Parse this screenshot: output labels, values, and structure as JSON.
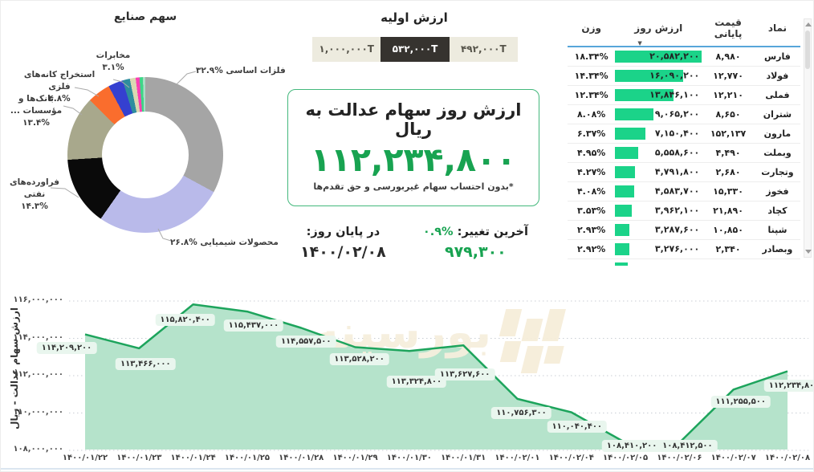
{
  "colors": {
    "accent_green": "#18a351",
    "bar_green": "#1bd389",
    "line_green": "#1da45c",
    "area_fill": "#b5e3cb",
    "chip_bg": "#e9f6ee",
    "tab_bg": "#edebdf",
    "tab_selected_bg": "#36332f",
    "header_underline_blue": "#57a6da"
  },
  "initial_value": {
    "title": "ارزش اولیه",
    "options": [
      "۱,۰۰۰,۰۰۰T",
      "۵۳۲,۰۰۰T",
      "۴۹۲,۰۰۰T"
    ],
    "selected_index": 1
  },
  "day_value": {
    "title": "ارزش روز سهام عدالت به ریال",
    "amount": "۱۱۲,۲۳۴,۸۰۰",
    "note": "*بدون احتساب سهام غیربورسی و حق تقدم‌ها"
  },
  "stats": {
    "last_change_label": "آخرین تغییر:",
    "last_change_percent": "۰.۹%",
    "last_change_value": "۹۷۹,۳۰۰",
    "end_of_day_label": "در پایان روز:",
    "end_of_day_date": "۱۴۰۰/۰۲/۰۸"
  },
  "table": {
    "columns": [
      "نماد",
      "قیمت پایانی",
      "ارزش روز",
      "وزن"
    ],
    "sort_icon": "▼",
    "rows": [
      {
        "symbol": "فارس",
        "close": "۸,۹۸۰",
        "day_value": "۲۰,۵۸۲,۲۰۰",
        "bar_pct": 100,
        "weight": "۱۸.۳۴%"
      },
      {
        "symbol": "فولاد",
        "close": "۱۲,۷۷۰",
        "day_value": "۱۶,۰۹۰,۲۰۰",
        "bar_pct": 78,
        "weight": "۱۴.۳۴%"
      },
      {
        "symbol": "فملی",
        "close": "۱۲,۲۱۰",
        "day_value": "۱۳,۸۴۶,۱۰۰",
        "bar_pct": 67,
        "weight": "۱۲.۳۴%"
      },
      {
        "symbol": "شتران",
        "close": "۸,۶۵۰",
        "day_value": "۹,۰۶۵,۲۰۰",
        "bar_pct": 44,
        "weight": "۸.۰۸%"
      },
      {
        "symbol": "مارون",
        "close": "۱۵۲,۱۳۷",
        "day_value": "۷,۱۵۰,۴۰۰",
        "bar_pct": 35,
        "weight": "۶.۳۷%"
      },
      {
        "symbol": "وبملت",
        "close": "۴,۴۹۰",
        "day_value": "۵,۵۵۸,۶۰۰",
        "bar_pct": 27,
        "weight": "۴.۹۵%"
      },
      {
        "symbol": "وتجارت",
        "close": "۲,۶۸۰",
        "day_value": "۴,۷۹۱,۸۰۰",
        "bar_pct": 23,
        "weight": "۴.۲۷%"
      },
      {
        "symbol": "فخوز",
        "close": "۱۵,۳۳۰",
        "day_value": "۴,۵۸۳,۷۰۰",
        "bar_pct": 22,
        "weight": "۴.۰۸%"
      },
      {
        "symbol": "کچاد",
        "close": "۲۱,۸۹۰",
        "day_value": "۳,۹۶۲,۱۰۰",
        "bar_pct": 19,
        "weight": "۳.۵۳%"
      },
      {
        "symbol": "شپنا",
        "close": "۱۰,۸۵۰",
        "day_value": "۳,۲۸۷,۶۰۰",
        "bar_pct": 16,
        "weight": "۲.۹۳%"
      },
      {
        "symbol": "وبصادر",
        "close": "۲,۳۴۰",
        "day_value": "۳,۲۷۶,۰۰۰",
        "bar_pct": 16,
        "weight": "۲.۹۲%"
      }
    ],
    "clipped_row_bar_pct": 15
  },
  "chart_data": [
    {
      "type": "pie",
      "title": "سهم صنایع",
      "donut": true,
      "legend_position": "callout-labels",
      "slices": [
        {
          "label": "فلزات اساسی",
          "pct_label": "۳۲.۹%",
          "value": 32.9,
          "color": "#a5a5a5"
        },
        {
          "label": "محصولات شیمیایی",
          "pct_label": "۲۶.۸%",
          "value": 26.8,
          "color": "#b9baea"
        },
        {
          "label": "فراورده‌های نفتی",
          "pct_label": "۱۴.۳%",
          "value": 14.3,
          "color": "#0a0a0a"
        },
        {
          "label": "بانک‌ها و مؤسسات ...",
          "pct_label": "۱۳.۴%",
          "value": 13.4,
          "color": "#a8a88c"
        },
        {
          "label": "استخراج کانه‌های فلزی",
          "pct_label": "۴.۸%",
          "value": 4.8,
          "color": "#fa6d2d"
        },
        {
          "label": "مخابرات",
          "pct_label": "۳.۱%",
          "value": 3.1,
          "color": "#3540d0"
        },
        {
          "label": "",
          "pct_label": "",
          "value": 1.5,
          "color": "#2e8d9e"
        },
        {
          "label": "",
          "pct_label": "",
          "value": 1.2,
          "color": "#dbd8b2"
        },
        {
          "label": "",
          "pct_label": "",
          "value": 0.8,
          "color": "#fb3fb4"
        },
        {
          "label": "",
          "pct_label": "",
          "value": 0.7,
          "color": "#3ed687"
        },
        {
          "label": "",
          "pct_label": "",
          "value": 0.5,
          "color": "#abdcc6"
        }
      ]
    },
    {
      "type": "area",
      "title": "",
      "xlabel": "",
      "ylabel": "ارزش سهام عدالت - ریال",
      "grid": true,
      "ylim": [
        108000000,
        116000000
      ],
      "yticks": {
        "values": [
          116000000,
          114000000,
          112000000,
          110000000,
          108000000
        ],
        "labels": [
          "۱۱۶,۰۰۰,۰۰۰",
          "۱۱۴,۰۰۰,۰۰۰",
          "۱۱۲,۰۰۰,۰۰۰",
          "۱۱۰,۰۰۰,۰۰۰",
          "۱۰۸,۰۰۰,۰۰۰"
        ]
      },
      "x": [
        "۱۴۰۰/۰۱/۲۲",
        "۱۴۰۰/۰۱/۲۳",
        "۱۴۰۰/۰۱/۲۴",
        "۱۴۰۰/۰۱/۲۵",
        "۱۴۰۰/۰۱/۲۸",
        "۱۴۰۰/۰۱/۲۹",
        "۱۴۰۰/۰۱/۳۰",
        "۱۴۰۰/۰۱/۳۱",
        "۱۴۰۰/۰۲/۰۱",
        "۱۴۰۰/۰۲/۰۴",
        "۱۴۰۰/۰۲/۰۵",
        "۱۴۰۰/۰۲/۰۶",
        "۱۴۰۰/۰۲/۰۷",
        "۱۴۰۰/۰۲/۰۸"
      ],
      "values": [
        114209200,
        113466000,
        115820400,
        115437000,
        114557500,
        113528200,
        113324800,
        113627600,
        110756300,
        110040400,
        108410200,
        108412500,
        111255500,
        112234800
      ],
      "value_labels": [
        "۱۱۴,۲۰۹,۲۰۰",
        "۱۱۳,۴۶۶,۰۰۰",
        "۱۱۵,۸۲۰,۴۰۰",
        "۱۱۵,۴۳۷,۰۰۰",
        "۱۱۴,۵۵۷,۵۰۰",
        "۱۱۳,۵۲۸,۲۰۰",
        "۱۱۳,۳۲۴,۸۰۰",
        "۱۱۳,۶۲۷,۶۰۰",
        "۱۱۰,۷۵۶,۳۰۰",
        "۱۱۰,۰۴۰,۴۰۰",
        "۱۰۸,۴۱۰,۲۰۰",
        "۱۰۸,۴۱۲,۵۰۰",
        "۱۱۱,۲۵۵,۵۰۰",
        "۱۱۲,۲۳۴,۸۰۰"
      ]
    }
  ]
}
